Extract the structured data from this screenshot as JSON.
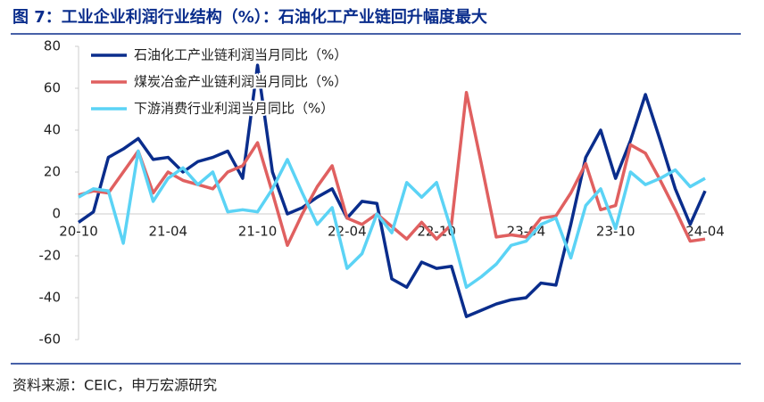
{
  "chart_data": {
    "type": "line",
    "title": "图 7：工业企业利润行业结构（%）：石油化工产业链回升幅度最大",
    "source": "资料来源：CEIC，申万宏源研究",
    "categories": [
      "20-10",
      null,
      null,
      null,
      null,
      null,
      "21-04",
      null,
      null,
      null,
      null,
      null,
      "21-10",
      null,
      null,
      null,
      null,
      null,
      "22-04",
      null,
      null,
      null,
      null,
      null,
      "22-10",
      null,
      null,
      null,
      null,
      null,
      "23-04",
      null,
      null,
      null,
      null,
      null,
      "23-10",
      null,
      null,
      null,
      null,
      null,
      "24-04"
    ],
    "ylim": [
      -60,
      80
    ],
    "yticks": [
      -60,
      -40,
      -20,
      0,
      20,
      40,
      60,
      80
    ],
    "legend": "upper left",
    "series": [
      {
        "name": "石油化工产业链利润当月同比（%）",
        "color": "#0a2d8c",
        "values": [
          -4,
          1,
          27,
          31,
          36,
          26,
          27,
          20,
          25,
          27,
          30,
          17,
          71,
          20,
          0,
          3,
          8,
          12,
          -2,
          6,
          5,
          -31,
          -35,
          -23,
          -26,
          -25,
          -49,
          -46,
          -43,
          -41,
          -40,
          -33,
          -34,
          -5,
          27,
          40,
          17,
          35,
          57,
          35,
          12,
          -5,
          11
        ]
      },
      {
        "name": "煤炭冶金产业链利润当月同比（%）",
        "color": "#e06060",
        "values": [
          9,
          11,
          10,
          20,
          30,
          10,
          20,
          16,
          14,
          12,
          20,
          23,
          34,
          10,
          -15,
          0,
          13,
          23,
          -2,
          -5,
          0,
          -6,
          -12,
          -4,
          -12,
          -5,
          58,
          24,
          -11,
          -10,
          -11,
          -2,
          -1,
          10,
          24,
          2,
          4,
          33,
          29,
          16,
          2,
          -13,
          -12
        ]
      },
      {
        "name": "下游消费行业利润当月同比（%）",
        "color": "#5bd3f5",
        "values": [
          8,
          12,
          11,
          -14,
          30,
          6,
          17,
          22,
          14,
          20,
          1,
          2,
          1,
          12,
          26,
          10,
          -5,
          3,
          -26,
          -19,
          0,
          -9,
          15,
          8,
          15,
          -8,
          -35,
          -30,
          -24,
          -15,
          -13,
          -5,
          -2,
          -21,
          4,
          12,
          -7,
          20,
          14,
          17,
          21,
          13,
          17
        ]
      }
    ]
  }
}
